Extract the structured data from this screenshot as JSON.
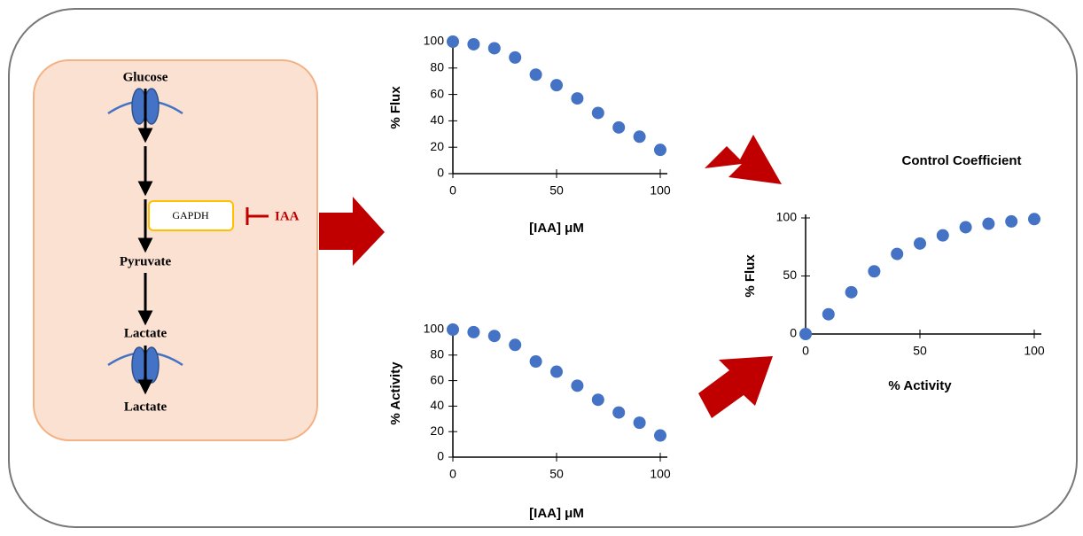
{
  "diagram": {
    "labels": {
      "glucose": "Glucose",
      "gapdh": "GAPDH",
      "inhibitor": "IAA",
      "pyruvate": "Pyruvate",
      "lactate_in": "Lactate",
      "lactate_out": "Lactate"
    }
  },
  "chart_data": [
    {
      "type": "scatter",
      "ylabel": "% Flux",
      "xlabel": "[IAA] μM",
      "color": "#4472c4",
      "x": [
        0,
        10,
        20,
        30,
        40,
        50,
        60,
        70,
        80,
        90,
        100
      ],
      "values": [
        100,
        98,
        95,
        88,
        75,
        67,
        57,
        46,
        35,
        28,
        18
      ],
      "xlim": [
        0,
        100
      ],
      "ylim": [
        0,
        100
      ],
      "xticks": [
        0,
        50,
        100
      ],
      "yticks": [
        0,
        20,
        40,
        60,
        80,
        100
      ]
    },
    {
      "type": "scatter",
      "ylabel": "% Activity",
      "xlabel": "[IAA] μM",
      "color": "#4472c4",
      "x": [
        0,
        10,
        20,
        30,
        40,
        50,
        60,
        70,
        80,
        90,
        100
      ],
      "values": [
        100,
        98,
        95,
        88,
        75,
        67,
        56,
        45,
        35,
        27,
        17
      ],
      "xlim": [
        0,
        100
      ],
      "ylim": [
        0,
        100
      ],
      "xticks": [
        0,
        50,
        100
      ],
      "yticks": [
        0,
        20,
        40,
        60,
        80,
        100
      ]
    },
    {
      "type": "scatter",
      "title": "Control Coefficient",
      "ylabel": "% Flux",
      "xlabel": "% Activity",
      "color": "#4472c4",
      "x": [
        0,
        10,
        20,
        30,
        40,
        50,
        60,
        70,
        80,
        90,
        100
      ],
      "values": [
        0,
        17,
        36,
        54,
        69,
        78,
        85,
        92,
        95,
        97,
        99
      ],
      "xlim": [
        0,
        100
      ],
      "ylim": [
        0,
        100
      ],
      "xticks": [
        0,
        50,
        100
      ],
      "yticks": [
        0,
        50,
        100
      ]
    }
  ]
}
